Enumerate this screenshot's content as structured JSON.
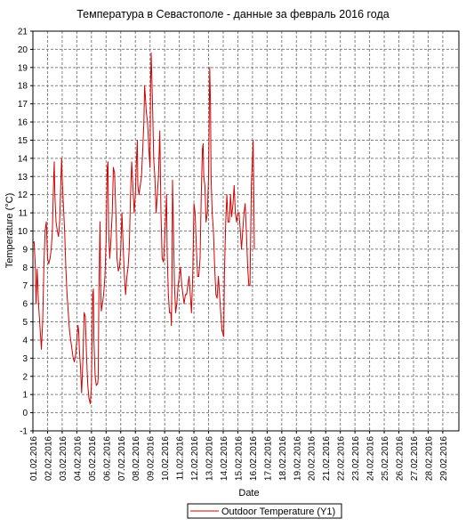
{
  "chart_data": {
    "type": "line",
    "title": "Температура в Севастополе - данные за февраль 2016 года",
    "xlabel": "Date",
    "ylabel": "Temperature (°C)",
    "ylim": [
      -1,
      21
    ],
    "grid": true,
    "legend_position": "bottom-center",
    "x_ticks": [
      "01.02.2016",
      "02.02.2016",
      "03.02.2016",
      "04.02.2016",
      "05.02.2016",
      "06.02.2016",
      "07.02.2016",
      "08.02.2016",
      "09.02.2016",
      "10.02.2016",
      "11.02.2016",
      "12.02.2016",
      "13.02.2016",
      "14.02.2016",
      "15.02.2016",
      "16.02.2016",
      "17.02.2016",
      "18.02.2016",
      "19.02.2016",
      "20.02.2016",
      "21.02.2016",
      "22.02.2016",
      "23.02.2016",
      "24.02.2016",
      "25.02.2016",
      "26.02.2016",
      "27.02.2016",
      "28.02.2016",
      "29.02.2016"
    ],
    "y_ticks": [
      -1,
      0,
      1,
      2,
      3,
      4,
      5,
      6,
      7,
      8,
      9,
      10,
      11,
      12,
      13,
      14,
      15,
      16,
      17,
      18,
      19,
      20,
      21
    ],
    "x_range_days": [
      0,
      29.1
    ],
    "series": [
      {
        "name": "Outdoor Temperature (Y1)",
        "color": "#d40000",
        "points": [
          [
            0.0,
            9.3
          ],
          [
            0.08,
            9.4
          ],
          [
            0.17,
            8.0
          ],
          [
            0.21,
            6.0
          ],
          [
            0.29,
            7.9
          ],
          [
            0.38,
            6.0
          ],
          [
            0.46,
            5.0
          ],
          [
            0.54,
            4.0
          ],
          [
            0.58,
            3.5
          ],
          [
            0.67,
            5.0
          ],
          [
            0.75,
            8.0
          ],
          [
            0.83,
            10.0
          ],
          [
            0.92,
            10.5
          ],
          [
            1.0,
            8.5
          ],
          [
            1.08,
            8.2
          ],
          [
            1.17,
            8.5
          ],
          [
            1.25,
            9.0
          ],
          [
            1.33,
            10.0
          ],
          [
            1.42,
            13.0
          ],
          [
            1.46,
            13.8
          ],
          [
            1.5,
            12.0
          ],
          [
            1.58,
            10.5
          ],
          [
            1.67,
            10.0
          ],
          [
            1.75,
            9.7
          ],
          [
            1.83,
            10.5
          ],
          [
            1.92,
            13.0
          ],
          [
            1.96,
            14.0
          ],
          [
            2.0,
            13.0
          ],
          [
            2.08,
            11.5
          ],
          [
            2.17,
            10.0
          ],
          [
            2.25,
            8.0
          ],
          [
            2.33,
            6.5
          ],
          [
            2.42,
            5.5
          ],
          [
            2.5,
            4.5
          ],
          [
            2.58,
            4.0
          ],
          [
            2.67,
            3.5
          ],
          [
            2.75,
            3.0
          ],
          [
            2.83,
            2.8
          ],
          [
            2.92,
            3.2
          ],
          [
            3.0,
            4.0
          ],
          [
            3.08,
            4.8
          ],
          [
            3.13,
            4.5
          ],
          [
            3.17,
            3.5
          ],
          [
            3.25,
            2.5
          ],
          [
            3.33,
            1.1
          ],
          [
            3.42,
            3.0
          ],
          [
            3.5,
            5.5
          ],
          [
            3.58,
            5.3
          ],
          [
            3.67,
            3.0
          ],
          [
            3.75,
            1.5
          ],
          [
            3.83,
            0.8
          ],
          [
            3.92,
            0.5
          ],
          [
            4.0,
            1.5
          ],
          [
            4.08,
            6.5
          ],
          [
            4.13,
            6.8
          ],
          [
            4.17,
            4.0
          ],
          [
            4.25,
            2.0
          ],
          [
            4.33,
            1.5
          ],
          [
            4.42,
            1.6
          ],
          [
            4.46,
            1.9
          ],
          [
            4.5,
            6.0
          ],
          [
            4.58,
            10.5
          ],
          [
            4.63,
            7.0
          ],
          [
            4.67,
            5.6
          ],
          [
            4.75,
            6.0
          ],
          [
            4.83,
            6.5
          ],
          [
            4.92,
            7.5
          ],
          [
            5.0,
            9.5
          ],
          [
            5.08,
            13.5
          ],
          [
            5.13,
            13.8
          ],
          [
            5.17,
            10.0
          ],
          [
            5.25,
            8.5
          ],
          [
            5.33,
            9.5
          ],
          [
            5.42,
            11.0
          ],
          [
            5.5,
            13.5
          ],
          [
            5.58,
            13.2
          ],
          [
            5.67,
            11.0
          ],
          [
            5.75,
            8.5
          ],
          [
            5.83,
            7.8
          ],
          [
            5.92,
            8.0
          ],
          [
            6.0,
            9.0
          ],
          [
            6.08,
            11.0
          ],
          [
            6.17,
            9.0
          ],
          [
            6.25,
            7.5
          ],
          [
            6.33,
            6.5
          ],
          [
            6.42,
            7.5
          ],
          [
            6.5,
            8.0
          ],
          [
            6.58,
            9.0
          ],
          [
            6.67,
            12.0
          ],
          [
            6.75,
            13.8
          ],
          [
            6.83,
            12.5
          ],
          [
            6.92,
            11.0
          ],
          [
            7.0,
            12.0
          ],
          [
            7.08,
            14.0
          ],
          [
            7.13,
            15.0
          ],
          [
            7.17,
            12.5
          ],
          [
            7.25,
            12.0
          ],
          [
            7.33,
            12.5
          ],
          [
            7.42,
            13.0
          ],
          [
            7.5,
            14.5
          ],
          [
            7.58,
            16.0
          ],
          [
            7.63,
            18.0
          ],
          [
            7.67,
            17.5
          ],
          [
            7.75,
            16.5
          ],
          [
            7.83,
            16.0
          ],
          [
            7.92,
            14.5
          ],
          [
            8.0,
            13.5
          ],
          [
            8.04,
            18.0
          ],
          [
            8.08,
            19.8
          ],
          [
            8.17,
            17.0
          ],
          [
            8.25,
            14.0
          ],
          [
            8.33,
            13.0
          ],
          [
            8.42,
            11.0
          ],
          [
            8.5,
            12.0
          ],
          [
            8.58,
            13.0
          ],
          [
            8.67,
            15.5
          ],
          [
            8.75,
            11.0
          ],
          [
            8.83,
            8.5
          ],
          [
            8.92,
            8.3
          ],
          [
            9.0,
            9.5
          ],
          [
            9.08,
            11.0
          ],
          [
            9.13,
            12.0
          ],
          [
            9.17,
            9.0
          ],
          [
            9.25,
            6.5
          ],
          [
            9.33,
            5.5
          ],
          [
            9.42,
            5.5
          ],
          [
            9.46,
            4.8
          ],
          [
            9.5,
            7.5
          ],
          [
            9.54,
            12.8
          ],
          [
            9.58,
            11.0
          ],
          [
            9.67,
            7.0
          ],
          [
            9.75,
            5.5
          ],
          [
            9.83,
            6.0
          ],
          [
            9.92,
            7.0
          ],
          [
            10.0,
            7.5
          ],
          [
            10.08,
            8.0
          ],
          [
            10.17,
            7.0
          ],
          [
            10.25,
            6.5
          ],
          [
            10.33,
            6.0
          ],
          [
            10.42,
            6.5
          ],
          [
            10.5,
            6.5
          ],
          [
            10.58,
            7.0
          ],
          [
            10.67,
            7.5
          ],
          [
            10.75,
            6.5
          ],
          [
            10.83,
            5.5
          ],
          [
            10.92,
            7.5
          ],
          [
            11.0,
            11.5
          ],
          [
            11.08,
            11.0
          ],
          [
            11.17,
            9.0
          ],
          [
            11.25,
            7.5
          ],
          [
            11.33,
            7.5
          ],
          [
            11.42,
            8.5
          ],
          [
            11.5,
            12.0
          ],
          [
            11.58,
            14.5
          ],
          [
            11.63,
            14.8
          ],
          [
            11.67,
            13.0
          ],
          [
            11.75,
            12.5
          ],
          [
            11.83,
            10.5
          ],
          [
            11.92,
            11.0
          ],
          [
            12.0,
            13.0
          ],
          [
            12.04,
            16.0
          ],
          [
            12.08,
            19.0
          ],
          [
            12.13,
            17.0
          ],
          [
            12.17,
            13.0
          ],
          [
            12.25,
            11.0
          ],
          [
            12.33,
            10.0
          ],
          [
            12.42,
            8.0
          ],
          [
            12.5,
            6.5
          ],
          [
            12.58,
            6.3
          ],
          [
            12.67,
            7.5
          ],
          [
            12.75,
            6.5
          ],
          [
            12.83,
            5.5
          ],
          [
            12.92,
            4.5
          ],
          [
            13.0,
            4.3
          ],
          [
            13.04,
            4.2
          ],
          [
            13.08,
            7.5
          ],
          [
            13.17,
            10.5
          ],
          [
            13.25,
            12.0
          ],
          [
            13.33,
            10.5
          ],
          [
            13.42,
            10.5
          ],
          [
            13.5,
            12.0
          ],
          [
            13.58,
            10.8
          ],
          [
            13.67,
            11.5
          ],
          [
            13.75,
            12.5
          ],
          [
            13.83,
            11.0
          ],
          [
            13.92,
            10.5
          ],
          [
            14.0,
            11.0
          ],
          [
            14.08,
            11.0
          ],
          [
            14.17,
            10.0
          ],
          [
            14.25,
            9.0
          ],
          [
            14.33,
            10.0
          ],
          [
            14.42,
            11.0
          ],
          [
            14.5,
            11.5
          ],
          [
            14.58,
            10.0
          ],
          [
            14.67,
            8.0
          ],
          [
            14.75,
            7.0
          ],
          [
            14.83,
            7.0
          ],
          [
            14.92,
            12.5
          ],
          [
            15.0,
            14.0
          ],
          [
            15.04,
            15.0
          ],
          [
            15.08,
            13.0
          ],
          [
            15.13,
            9.0
          ]
        ]
      }
    ]
  },
  "legend": {
    "label": "Outdoor Temperature (Y1)"
  }
}
